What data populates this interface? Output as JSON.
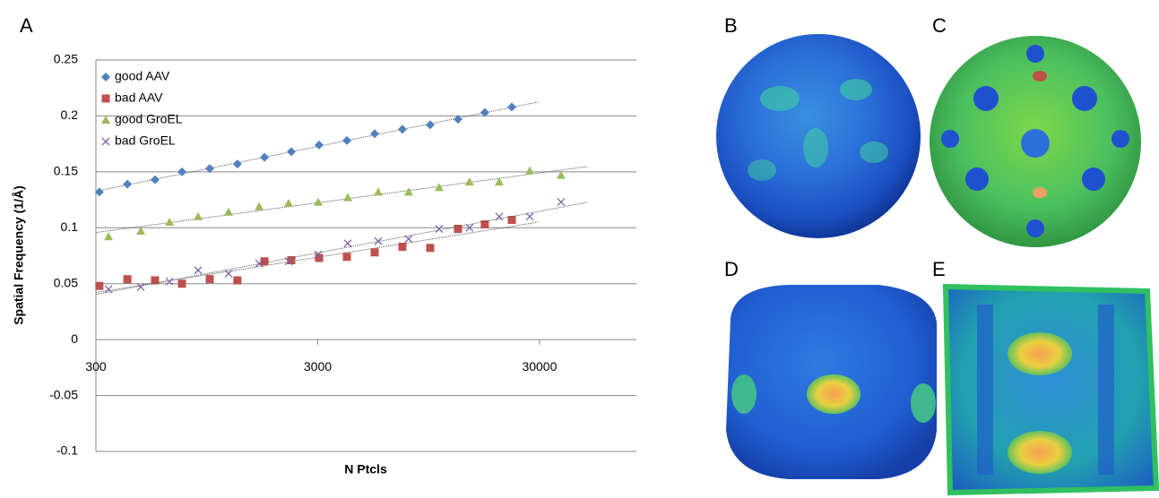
{
  "chart_data": {
    "type": "scatter",
    "panel_label": "A",
    "x_label": "N Ptcls",
    "y_label": "Spatial Frequency (1/Å)",
    "xscale": "log",
    "xlim": [
      300,
      82000
    ],
    "xticks": [
      300,
      3000,
      30000
    ],
    "ylim": [
      -0.1,
      0.25
    ],
    "yticks": [
      0.25,
      0.2,
      0.15,
      0.1,
      0.05,
      0,
      -0.05,
      -0.1
    ],
    "grid": true,
    "legend": "upper left",
    "trendline": true,
    "series": [
      {
        "name": "good AAV",
        "color": "#4f81bd",
        "marker": "diamond",
        "x": [
          311,
          416,
          554,
          733,
          978,
          1303,
          1726,
          2280,
          3042,
          4060,
          5418,
          7226,
          9640,
          12868,
          17000,
          22500
        ],
        "values": [
          0.132,
          0.139,
          0.143,
          0.15,
          0.153,
          0.157,
          0.163,
          0.168,
          0.174,
          0.178,
          0.184,
          0.188,
          0.192,
          0.197,
          0.203,
          0.208
        ]
      },
      {
        "name": "bad AAV",
        "color": "#c0504d",
        "marker": "square",
        "x": [
          311,
          416,
          554,
          733,
          978,
          1303,
          1726,
          2280,
          3042,
          4060,
          5418,
          7226,
          9640,
          12868,
          17000,
          22500
        ],
        "values": [
          0.048,
          0.054,
          0.053,
          0.05,
          0.054,
          0.053,
          0.07,
          0.071,
          0.073,
          0.074,
          0.078,
          0.083,
          0.082,
          0.099,
          0.103,
          0.107
        ]
      },
      {
        "name": "good GroEL",
        "color": "#9bbb59",
        "marker": "triangle",
        "x": [
          342,
          478,
          644,
          867,
          1189,
          1633,
          2216,
          3014,
          4096,
          5624,
          7710,
          10570,
          14500,
          19740,
          27090,
          37500
        ],
        "values": [
          0.092,
          0.097,
          0.105,
          0.11,
          0.114,
          0.119,
          0.122,
          0.123,
          0.127,
          0.132,
          0.132,
          0.136,
          0.141,
          0.141,
          0.151,
          0.147
        ]
      },
      {
        "name": "bad GroEL",
        "color": "#8064a2",
        "marker": "x",
        "x": [
          342,
          478,
          644,
          867,
          1189,
          1633,
          2216,
          3014,
          4096,
          5624,
          7710,
          10570,
          14500,
          19740,
          27090,
          37500
        ],
        "values": [
          0.045,
          0.047,
          0.052,
          0.062,
          0.059,
          0.068,
          0.07,
          0.076,
          0.086,
          0.088,
          0.09,
          0.099,
          0.1,
          0.11,
          0.11,
          0.123
        ]
      }
    ]
  },
  "panels": [
    "B",
    "C",
    "D",
    "E"
  ]
}
